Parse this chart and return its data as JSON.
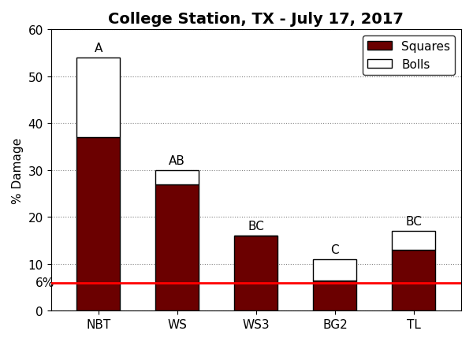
{
  "title": "College Station, TX - July 17, 2017",
  "categories": [
    "NBT",
    "WS",
    "WS3",
    "BG2",
    "TL"
  ],
  "squares": [
    37.0,
    27.0,
    16.0,
    6.5,
    13.0
  ],
  "bolls": [
    17.0,
    3.0,
    0.0,
    4.5,
    4.0
  ],
  "labels": [
    "A",
    "AB",
    "BC",
    "C",
    "BC"
  ],
  "bar_color_squares": "#6B0000",
  "bar_color_bolls": "#FFFFFF",
  "bar_edgecolor": "#000000",
  "hline_value": 6,
  "hline_color": "#FF0000",
  "hline_label": "6%",
  "ylabel": "% Damage",
  "ylim": [
    0,
    60
  ],
  "yticks": [
    0,
    10,
    20,
    30,
    40,
    50,
    60
  ],
  "title_fontsize": 14,
  "label_fontsize": 11,
  "tick_fontsize": 11,
  "bar_width": 0.55,
  "legend_labels": [
    "Squares",
    "Bolls"
  ],
  "background_color": "#FFFFFF"
}
